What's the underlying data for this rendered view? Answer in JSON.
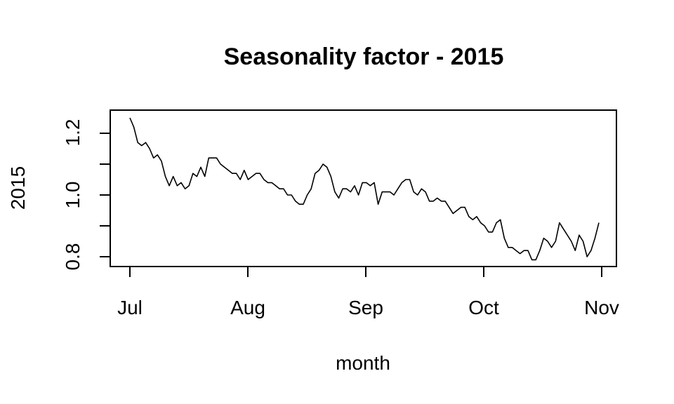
{
  "chart_data": {
    "type": "line",
    "title": "Seasonality factor - 2015",
    "xlabel": "month",
    "ylabel": "2015",
    "x_ticks": [
      "Jul",
      "Aug",
      "Sep",
      "Oct",
      "Nov"
    ],
    "y_ticks": [
      "0.8",
      "1.0",
      "1.2"
    ],
    "ylim": [
      0.76,
      1.26
    ],
    "grid": false,
    "legend": "none",
    "line_color": "#000000",
    "x_start": "2015-07-01",
    "x_end": "2015-10-30",
    "series": [
      {
        "values": [
          1.25,
          1.22,
          1.17,
          1.16,
          1.17,
          1.15,
          1.12,
          1.13,
          1.11,
          1.06,
          1.03,
          1.06,
          1.03,
          1.04,
          1.02,
          1.03,
          1.07,
          1.06,
          1.09,
          1.06,
          1.12,
          1.12,
          1.12,
          1.1,
          1.09,
          1.08,
          1.07,
          1.07,
          1.05,
          1.08,
          1.05,
          1.06,
          1.07,
          1.07,
          1.05,
          1.04,
          1.04,
          1.03,
          1.02,
          1.02,
          1.0,
          1.0,
          0.98,
          0.97,
          0.97,
          1.0,
          1.02,
          1.07,
          1.08,
          1.1,
          1.09,
          1.06,
          1.01,
          0.99,
          1.02,
          1.02,
          1.01,
          1.03,
          1.0,
          1.04,
          1.04,
          1.03,
          1.04,
          0.97,
          1.01,
          1.01,
          1.01,
          1.0,
          1.02,
          1.04,
          1.05,
          1.05,
          1.01,
          1.0,
          1.02,
          1.01,
          0.98,
          0.98,
          0.99,
          0.98,
          0.98,
          0.96,
          0.94,
          0.95,
          0.96,
          0.96,
          0.93,
          0.92,
          0.93,
          0.91,
          0.9,
          0.88,
          0.88,
          0.91,
          0.92,
          0.86,
          0.83,
          0.83,
          0.82,
          0.81,
          0.82,
          0.82,
          0.79,
          0.79,
          0.82,
          0.86,
          0.85,
          0.83,
          0.85,
          0.91,
          0.89,
          0.87,
          0.85,
          0.82,
          0.87,
          0.85,
          0.8,
          0.82,
          0.86,
          0.91
        ]
      }
    ]
  }
}
